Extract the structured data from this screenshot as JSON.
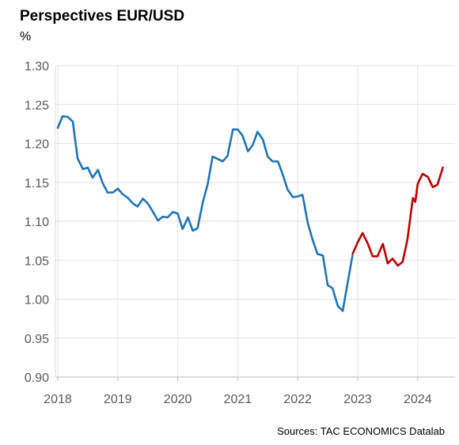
{
  "chart_data": {
    "type": "line",
    "title": "Perspectives EUR/USD",
    "ylabel": "%",
    "source": "Sources: TAC ECONOMICS Datalab",
    "ylim": [
      0.9,
      1.3
    ],
    "xlim": [
      2018,
      2024.6
    ],
    "yticks": [
      "0.90",
      "0.95",
      "1.00",
      "1.05",
      "1.10",
      "1.15",
      "1.20",
      "1.25",
      "1.30"
    ],
    "xticks": [
      "2018",
      "2019",
      "2020",
      "2021",
      "2022",
      "2023",
      "2024"
    ],
    "grid": true,
    "series": [
      {
        "color": "#1f74b8",
        "points": [
          [
            2018.0,
            1.22
          ],
          [
            2018.08,
            1.235
          ],
          [
            2018.17,
            1.234
          ],
          [
            2018.25,
            1.228
          ],
          [
            2018.33,
            1.181
          ],
          [
            2018.42,
            1.167
          ],
          [
            2018.5,
            1.169
          ],
          [
            2018.58,
            1.156
          ],
          [
            2018.67,
            1.166
          ],
          [
            2018.75,
            1.149
          ],
          [
            2018.83,
            1.137
          ],
          [
            2018.92,
            1.137
          ],
          [
            2019.0,
            1.142
          ],
          [
            2019.08,
            1.135
          ],
          [
            2019.17,
            1.13
          ],
          [
            2019.25,
            1.123
          ],
          [
            2019.33,
            1.119
          ],
          [
            2019.42,
            1.129
          ],
          [
            2019.5,
            1.123
          ],
          [
            2019.58,
            1.113
          ],
          [
            2019.67,
            1.101
          ],
          [
            2019.75,
            1.106
          ],
          [
            2019.83,
            1.105
          ],
          [
            2019.92,
            1.112
          ],
          [
            2020.0,
            1.11
          ],
          [
            2020.08,
            1.09
          ],
          [
            2020.17,
            1.105
          ],
          [
            2020.25,
            1.088
          ],
          [
            2020.33,
            1.091
          ],
          [
            2020.42,
            1.125
          ],
          [
            2020.5,
            1.148
          ],
          [
            2020.58,
            1.183
          ],
          [
            2020.67,
            1.18
          ],
          [
            2020.75,
            1.177
          ],
          [
            2020.83,
            1.184
          ],
          [
            2020.92,
            1.218
          ],
          [
            2021.0,
            1.218
          ],
          [
            2021.08,
            1.21
          ],
          [
            2021.17,
            1.19
          ],
          [
            2021.25,
            1.198
          ],
          [
            2021.33,
            1.215
          ],
          [
            2021.42,
            1.205
          ],
          [
            2021.5,
            1.183
          ],
          [
            2021.58,
            1.177
          ],
          [
            2021.67,
            1.177
          ],
          [
            2021.75,
            1.16
          ],
          [
            2021.83,
            1.141
          ],
          [
            2021.92,
            1.131
          ],
          [
            2022.0,
            1.132
          ],
          [
            2022.08,
            1.134
          ],
          [
            2022.17,
            1.097
          ],
          [
            2022.25,
            1.076
          ],
          [
            2022.33,
            1.058
          ],
          [
            2022.42,
            1.056
          ],
          [
            2022.5,
            1.018
          ],
          [
            2022.58,
            1.014
          ],
          [
            2022.67,
            0.991
          ],
          [
            2022.75,
            0.985
          ],
          [
            2022.83,
            1.02
          ],
          [
            2022.92,
            1.059
          ]
        ]
      },
      {
        "color": "#c00000",
        "points": [
          [
            2022.92,
            1.059
          ],
          [
            2023.0,
            1.073
          ],
          [
            2023.08,
            1.085
          ],
          [
            2023.17,
            1.071
          ],
          [
            2023.25,
            1.055
          ],
          [
            2023.33,
            1.055
          ],
          [
            2023.42,
            1.071
          ],
          [
            2023.5,
            1.046
          ],
          [
            2023.58,
            1.052
          ],
          [
            2023.67,
            1.043
          ],
          [
            2023.75,
            1.048
          ],
          [
            2023.83,
            1.077
          ],
          [
            2023.92,
            1.13
          ],
          [
            2023.96,
            1.125
          ],
          [
            2024.0,
            1.148
          ],
          [
            2024.08,
            1.161
          ],
          [
            2024.17,
            1.157
          ],
          [
            2024.25,
            1.144
          ],
          [
            2024.33,
            1.147
          ],
          [
            2024.42,
            1.169
          ]
        ]
      }
    ]
  }
}
